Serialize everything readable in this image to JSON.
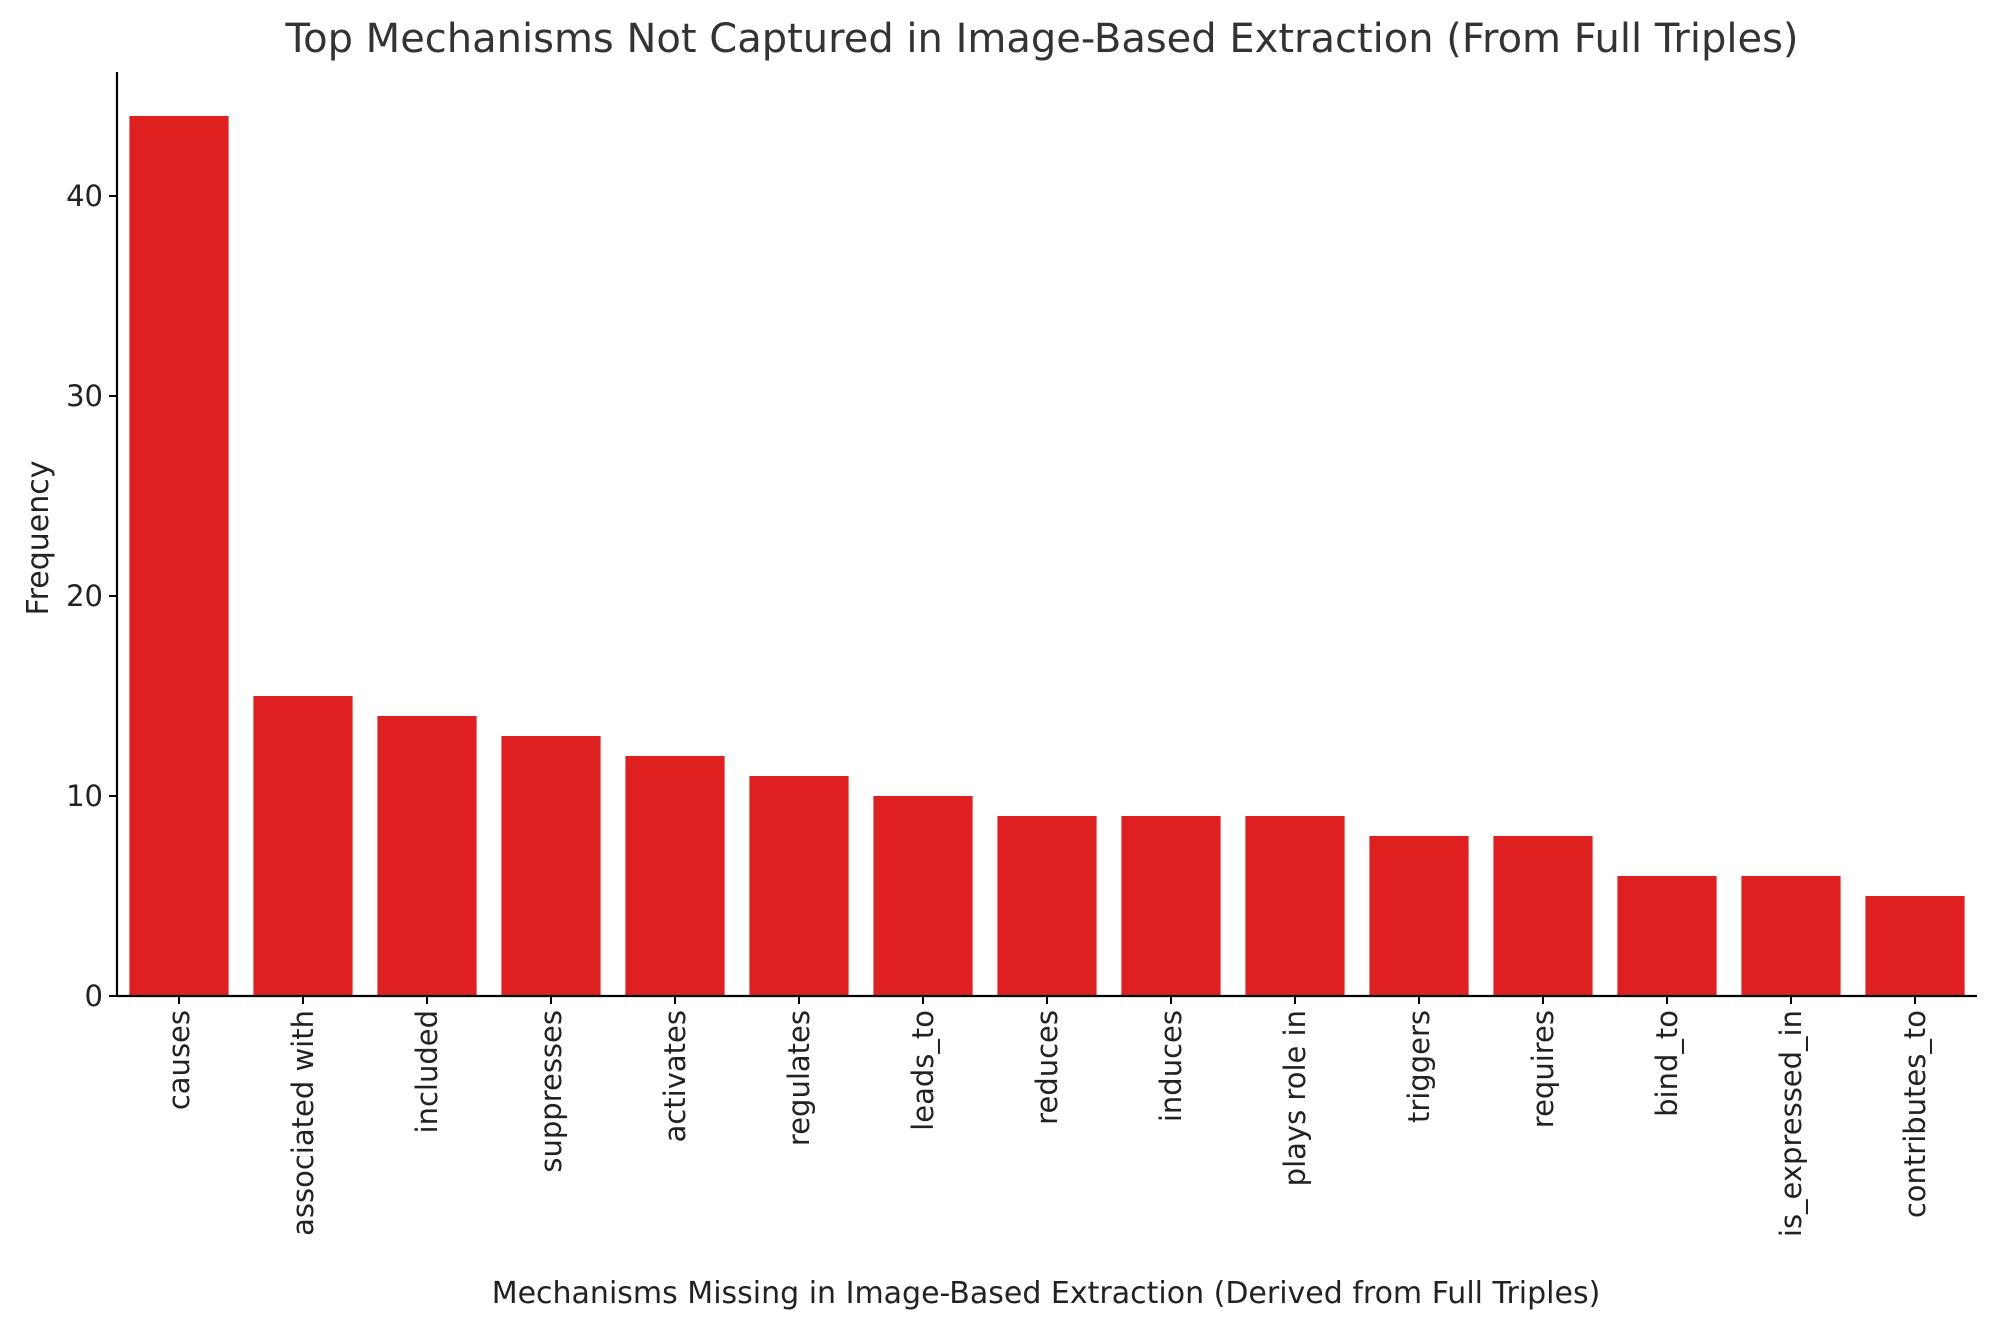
{
  "chart_data": {
    "type": "bar",
    "title": "Top Mechanisms Not Captured in Image-Based Extraction (From Full Triples)",
    "xlabel": "Mechanisms Missing in Image-Based Extraction (Derived from Full Triples)",
    "ylabel": "Frequency",
    "categories": [
      "causes",
      "associated with",
      "included",
      "suppresses",
      "activates",
      "regulates",
      "leads_to",
      "reduces",
      "induces",
      "plays role in",
      "triggers",
      "requires",
      "bind_to",
      "is_expressed_in",
      "contributes_to"
    ],
    "values": [
      44,
      15,
      14,
      13,
      12,
      11,
      10,
      9,
      9,
      9,
      8,
      8,
      6,
      6,
      5
    ],
    "ylim": [
      0,
      46.2
    ],
    "yticks": [
      0,
      10,
      20,
      30,
      40
    ],
    "grid": false,
    "legend": "none",
    "bar_color": "#df2020"
  }
}
